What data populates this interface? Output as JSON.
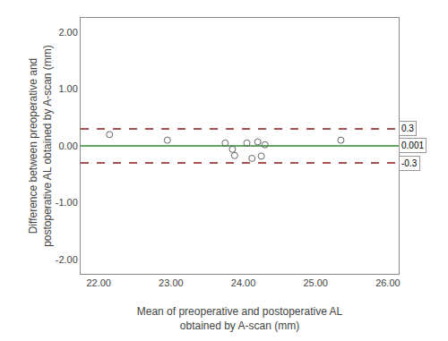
{
  "chart_data": {
    "type": "scatter",
    "xlabel": "Mean of preoperative and postoperative AL\nobtained by A-scan (mm)",
    "ylabel": "Difference between preoperative and\npostoperative AL obtained by A-scan (mm)",
    "x": [
      22.15,
      22.95,
      23.75,
      23.85,
      23.88,
      24.05,
      24.12,
      24.2,
      24.25,
      24.3,
      25.35
    ],
    "values": [
      0.2,
      0.1,
      0.05,
      -0.06,
      -0.17,
      0.05,
      -0.22,
      0.07,
      -0.18,
      0.02,
      0.1
    ],
    "color": "#666666",
    "marker": "open_circle",
    "reference_lines": [
      {
        "y": 0.001,
        "label": "0.001",
        "color": "#2d8a2d",
        "line_style": "solid"
      },
      {
        "y": 0.3,
        "label": "0.3",
        "color": "#8b1a1a",
        "line_style": "dashed"
      },
      {
        "y": -0.3,
        "label": "-0.3",
        "color": "#8b1a1a",
        "line_style": "dashed"
      }
    ],
    "xlim": [
      21.75,
      26.15
    ],
    "ylim": [
      -2.25,
      2.25
    ],
    "xticks": [
      {
        "value": 22.0,
        "label": "22.00"
      },
      {
        "value": 23.0,
        "label": "23.00"
      },
      {
        "value": 24.0,
        "label": "24.00"
      },
      {
        "value": 25.0,
        "label": "25.00"
      },
      {
        "value": 26.0,
        "label": "26.00"
      }
    ],
    "yticks": [
      {
        "value": -2.0,
        "label": "-2.00"
      },
      {
        "value": -1.0,
        "label": "-1.00"
      },
      {
        "value": 0.0,
        "label": "0.00"
      },
      {
        "value": 1.0,
        "label": "1.00"
      },
      {
        "value": 2.0,
        "label": "2.00"
      }
    ],
    "grid": false
  }
}
